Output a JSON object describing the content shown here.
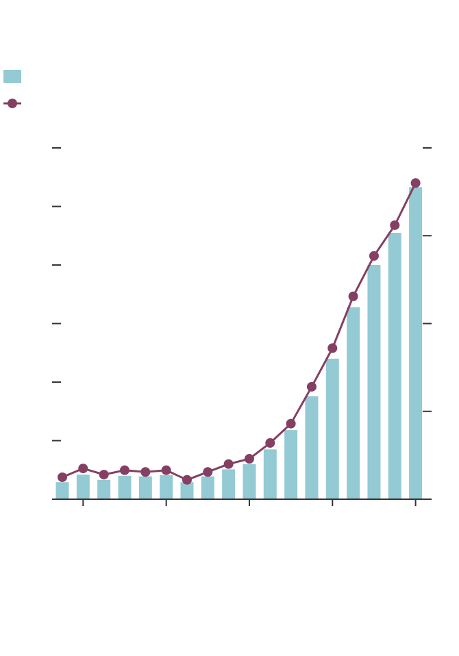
{
  "chart_data": {
    "type": "bar",
    "title": "",
    "categories": [
      "",
      "",
      "",
      "",
      "",
      "",
      "",
      "",
      "",
      "",
      "",
      "",
      "",
      "",
      "",
      "",
      "",
      ""
    ],
    "series": [
      {
        "kind": "bar",
        "axis": "left",
        "color": "#93CAD4",
        "values": [
          0.29,
          0.42,
          0.33,
          0.4,
          0.39,
          0.41,
          0.29,
          0.39,
          0.51,
          0.6,
          0.85,
          1.18,
          1.76,
          2.4,
          3.28,
          4.0,
          4.55,
          5.33
        ]
      },
      {
        "kind": "line",
        "axis": "right",
        "color": "#843F62",
        "values": [
          0.25,
          0.35,
          0.28,
          0.33,
          0.31,
          0.33,
          0.22,
          0.31,
          0.4,
          0.46,
          0.64,
          0.86,
          1.28,
          1.72,
          2.31,
          2.77,
          3.12,
          3.6
        ]
      }
    ],
    "left_axis": {
      "ylim": [
        0,
        6
      ],
      "ticks": [
        0,
        1,
        2,
        3,
        4,
        5,
        6
      ],
      "tick_labels": []
    },
    "right_axis": {
      "ylim": [
        0,
        4
      ],
      "ticks": [
        0,
        1,
        2,
        3,
        4
      ],
      "tick_labels": []
    },
    "x_tick_labels": [],
    "legend": {
      "position": "top-left",
      "entries": []
    },
    "grid": false
  }
}
